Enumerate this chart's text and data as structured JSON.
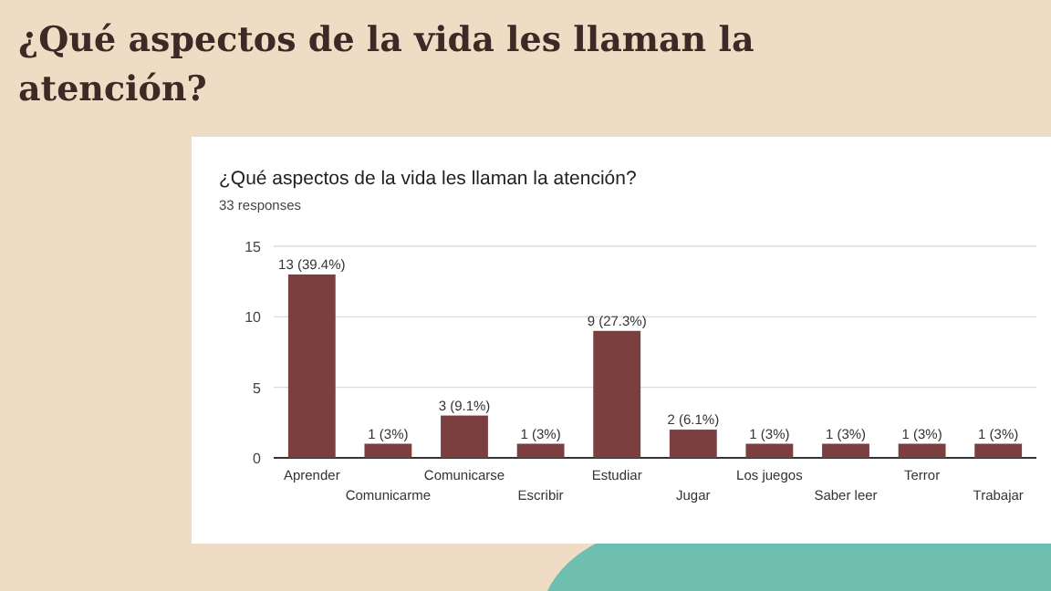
{
  "chart_data": {
    "type": "bar",
    "title": "¿Qué aspectos de la vida les llaman la atención?",
    "subtitle": "¿Qué aspectos de la vida les llaman la atención?",
    "annotations": [
      "33 responses"
    ],
    "categories": [
      "Aprender",
      "Comunicarme",
      "Comunicarse",
      "Escribir",
      "Estudiar",
      "Jugar",
      "Los juegos",
      "Saber leer",
      "Terror",
      "Trabajar"
    ],
    "values": [
      13,
      1,
      3,
      1,
      9,
      2,
      1,
      1,
      1,
      1
    ],
    "value_labels": [
      "13 (39.4%)",
      "1 (3%)",
      "3 (9.1%)",
      "1 (3%)",
      "9 (27.3%)",
      "2 (6.1%)",
      "1 (3%)",
      "1 (3%)",
      "1 (3%)",
      "1 (3%)"
    ],
    "color": "#7b3f3f",
    "ylim": [
      0,
      15
    ],
    "yticks": [
      0,
      5,
      10,
      15
    ],
    "grid": "y"
  }
}
